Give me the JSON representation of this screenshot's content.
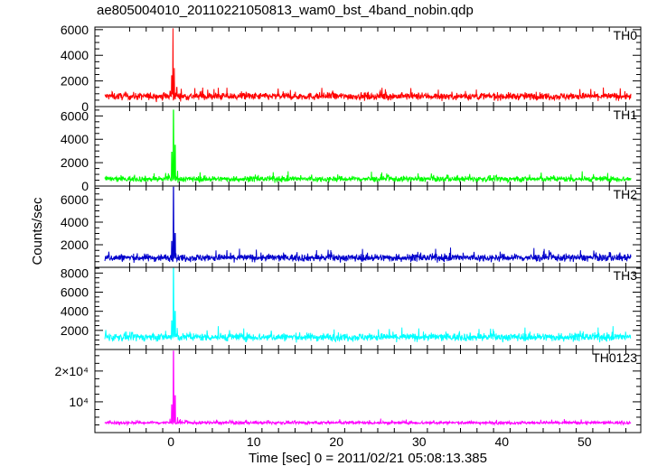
{
  "chart_data": {
    "type": "line",
    "title": "ae805004010_20110221050813_wam0_bst_4band_nobin.qdp",
    "xlabel": "Time [sec] 0 = 2011/02/21 05:08:13.385",
    "ylabel": "Counts/sec",
    "xlim": [
      -9.2,
      56.8
    ],
    "x_ticks": [
      0,
      10,
      20,
      30,
      40,
      50
    ],
    "x_tick_labels": [
      "0",
      "10",
      "20",
      "30",
      "40",
      "50"
    ],
    "grid": false,
    "legend": "none",
    "x_sampling": {
      "start": -8.0,
      "end": 55.6,
      "step": 0.04
    },
    "series": [
      {
        "name": "TH0",
        "color": "#ff0000",
        "ylim": [
          0,
          6200
        ],
        "yticks": [
          0,
          2000,
          4000,
          6000
        ],
        "ytick_labels": [
          "0",
          "2000",
          "4000",
          "6000"
        ],
        "baseline": 800,
        "noise": 260,
        "peaks": [
          [
            -0.1,
            1200
          ],
          [
            0.1,
            2400
          ],
          [
            0.25,
            6100
          ],
          [
            0.4,
            3000
          ],
          [
            0.7,
            1500
          ]
        ]
      },
      {
        "name": "TH1",
        "color": "#00ff00",
        "ylim": [
          0,
          6800
        ],
        "yticks": [
          0,
          2000,
          4000,
          6000
        ],
        "ytick_labels": [
          "0",
          "2000",
          "4000",
          "6000"
        ],
        "baseline": 600,
        "noise": 220,
        "peaks": [
          [
            0.1,
            2900
          ],
          [
            0.3,
            6500
          ],
          [
            0.5,
            3500
          ],
          [
            0.8,
            1300
          ]
        ]
      },
      {
        "name": "TH2",
        "color": "#0000cc",
        "ylim": [
          0,
          7200
        ],
        "yticks": [
          2000,
          4000,
          6000
        ],
        "ytick_labels": [
          "2000",
          "4000",
          "6000"
        ],
        "baseline": 850,
        "noise": 300,
        "peaks": [
          [
            0.1,
            2300
          ],
          [
            0.3,
            7100
          ],
          [
            0.5,
            3000
          ]
        ]
      },
      {
        "name": "TH3",
        "color": "#00ffff",
        "ylim": [
          0,
          8600
        ],
        "yticks": [
          2000,
          4000,
          6000,
          8000
        ],
        "ytick_labels": [
          "2000",
          "4000",
          "6000",
          "8000"
        ],
        "baseline": 1300,
        "noise": 380,
        "peaks": [
          [
            0.1,
            3000
          ],
          [
            0.3,
            8500
          ],
          [
            0.5,
            4000
          ]
        ]
      },
      {
        "name": "TH0123",
        "color": "#ff00ff",
        "ylim": [
          0,
          27000
        ],
        "yticks": [
          10000,
          20000
        ],
        "ytick_labels": [
          "10⁴",
          "2×10⁴"
        ],
        "baseline": 3200,
        "noise": 450,
        "peaks": [
          [
            0.1,
            9000
          ],
          [
            0.3,
            26500
          ],
          [
            0.5,
            12000
          ],
          [
            0.8,
            5000
          ]
        ]
      }
    ]
  }
}
